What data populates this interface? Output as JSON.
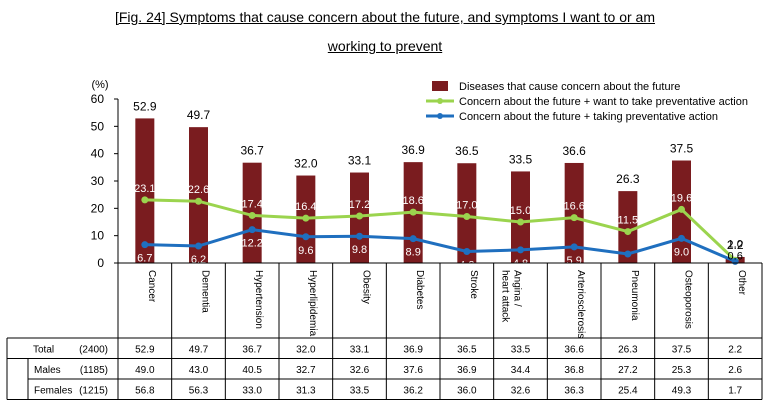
{
  "figure": {
    "title_line1": "[Fig. 24] Symptoms that cause concern about the future, and symptoms I want to or am",
    "title_line2": "working to prevent"
  },
  "chart_data": {
    "type": "bar",
    "y_unit": "(%)",
    "ylim": [
      0,
      60
    ],
    "yticks": [
      0,
      10,
      20,
      30,
      40,
      50,
      60
    ],
    "categories": [
      "Cancer",
      "Dementia",
      "Hypertension",
      "Hyperlipidemia",
      "Obesity",
      "Diabetes",
      "Stroke",
      "Angina / heart attack",
      "Arteriosclerosis",
      "Pneumonia",
      "Osteoporosis",
      "Other"
    ],
    "series": [
      {
        "name": "Diseases that cause concern about the future",
        "kind": "bar",
        "color": "#7a1c1f",
        "values": [
          52.9,
          49.7,
          36.7,
          32.0,
          33.1,
          36.9,
          36.5,
          33.5,
          36.6,
          26.3,
          37.5,
          2.2
        ]
      },
      {
        "name": "Concern about the future + want to take preventative action",
        "kind": "line",
        "color": "#9bd44e",
        "values": [
          23.1,
          22.6,
          17.4,
          16.4,
          17.2,
          18.6,
          17.0,
          15.0,
          16.6,
          11.5,
          19.6,
          1.0
        ]
      },
      {
        "name": "Concern about the future + taking preventative action",
        "kind": "line",
        "color": "#1f6fbf",
        "values": [
          6.7,
          6.2,
          12.2,
          9.6,
          9.8,
          8.9,
          4.2,
          4.8,
          5.9,
          3.3,
          9.0,
          0.6
        ]
      }
    ],
    "legend_position": "top-right",
    "table": {
      "rows": [
        {
          "label": "Total",
          "sub": false,
          "n": "(2400)",
          "values": [
            "52.9",
            "49.7",
            "36.7",
            "32.0",
            "33.1",
            "36.9",
            "36.5",
            "33.5",
            "36.6",
            "26.3",
            "37.5",
            "2.2"
          ]
        },
        {
          "label": "Males",
          "sub": true,
          "n": "(1185)",
          "values": [
            "49.0",
            "43.0",
            "40.5",
            "32.7",
            "32.6",
            "37.6",
            "36.9",
            "34.4",
            "36.8",
            "27.2",
            "25.3",
            "2.6"
          ]
        },
        {
          "label": "Females",
          "sub": true,
          "n": "(1215)",
          "values": [
            "56.8",
            "56.3",
            "33.0",
            "31.3",
            "33.5",
            "36.2",
            "36.0",
            "32.6",
            "36.3",
            "25.4",
            "49.3",
            "1.7"
          ]
        }
      ]
    }
  }
}
